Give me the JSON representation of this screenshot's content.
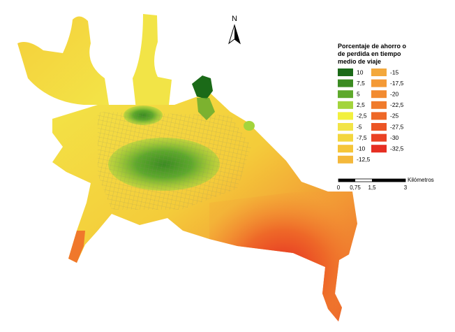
{
  "north_arrow": {
    "label": "N"
  },
  "legend": {
    "title_lines": [
      "Porcentaje de ahorro o",
      "de perdida en tiempo",
      "medio de viaje"
    ],
    "items": [
      {
        "label": "10",
        "color": "#1b6a18"
      },
      {
        "label": "7,5",
        "color": "#3b8b22"
      },
      {
        "label": "5",
        "color": "#5ea92c"
      },
      {
        "label": "2,5",
        "color": "#a3d43c"
      },
      {
        "label": "-2,5",
        "color": "#f2f03e"
      },
      {
        "label": "-5",
        "color": "#f2e447"
      },
      {
        "label": "-7,5",
        "color": "#f3d63e"
      },
      {
        "label": "-10",
        "color": "#f5c539"
      },
      {
        "label": "-12,5",
        "color": "#f4b83b"
      },
      {
        "label": "-15",
        "color": "#f3a83c"
      },
      {
        "label": "-17,5",
        "color": "#f49a36"
      },
      {
        "label": "-20",
        "color": "#f28b31"
      },
      {
        "label": "-22,5",
        "color": "#f07b2c"
      },
      {
        "label": "-25",
        "color": "#ee6828"
      },
      {
        "label": "-27,5",
        "color": "#ec5525"
      },
      {
        "label": "-30",
        "color": "#ea4224"
      },
      {
        "label": "-32,5",
        "color": "#e62e22"
      }
    ]
  },
  "scale_bar": {
    "unit": "Kilómetros",
    "labels": [
      "0",
      "0,75",
      "1,5",
      "3"
    ]
  }
}
